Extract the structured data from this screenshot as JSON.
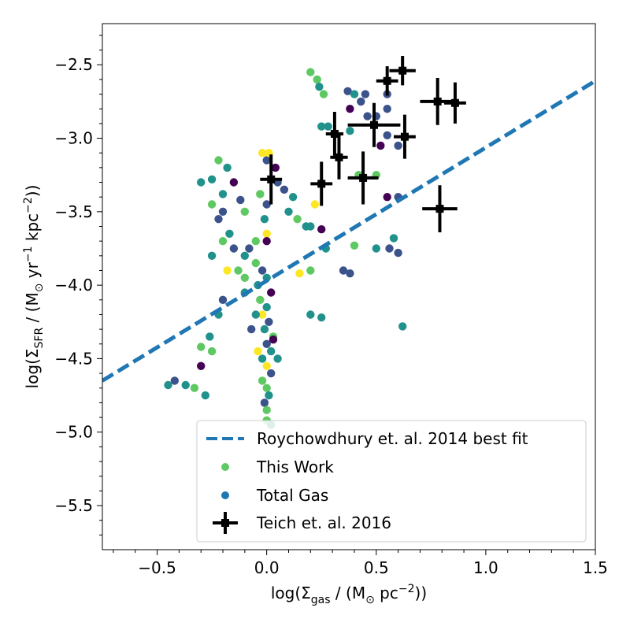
{
  "chart_data": {
    "type": "scatter",
    "xlabel": "log(Σgas / (M⊙ pc−2))",
    "ylabel": "log(ΣSFR / (M⊙ yr−1 kpc−2))",
    "xlim": [
      -0.75,
      1.5
    ],
    "ylim": [
      -5.8,
      -2.22
    ],
    "xticks": [
      -0.5,
      0.0,
      0.5,
      1.0,
      1.5
    ],
    "xtick_labels": [
      "−0.5",
      "0.0",
      "0.5",
      "1.0",
      "1.5"
    ],
    "yticks": [
      -5.5,
      -5.0,
      -4.5,
      -4.0,
      -3.5,
      -3.0,
      -2.5
    ],
    "ytick_labels": [
      "−5.5",
      "−5.0",
      "−4.5",
      "−4.0",
      "−3.5",
      "−3.0",
      "−2.5"
    ],
    "grid": false,
    "legend_position": "lower-right",
    "viridis": [
      "#440154",
      "#3b528b",
      "#21918c",
      "#5ec962",
      "#fde725"
    ],
    "series": [
      {
        "name": "Roychowdhury et. al. 2014 best fit",
        "kind": "line",
        "style": "dashed",
        "color": "#1f77b4",
        "x": [
          -0.75,
          1.5
        ],
        "y": [
          -4.65,
          -2.61
        ]
      },
      {
        "name": "This Work",
        "kind": "scatter",
        "legend_color": "#5ec962",
        "points": [
          [
            0.05,
            -3.3,
            0.15
          ],
          [
            0.08,
            -3.35,
            0.3
          ],
          [
            0.12,
            -3.4,
            0.55
          ],
          [
            0.1,
            -3.5,
            0.4
          ],
          [
            0.14,
            -3.55,
            0.85
          ],
          [
            0.2,
            -3.6,
            0.5
          ],
          [
            0.0,
            -3.15,
            0.2
          ],
          [
            -0.02,
            -3.1,
            0.9
          ],
          [
            0.01,
            -3.1,
            0.95
          ],
          [
            0.04,
            -3.2,
            0.1
          ],
          [
            -0.03,
            -3.38,
            0.7
          ],
          [
            0.0,
            -3.45,
            0.35
          ],
          [
            -0.01,
            -3.55,
            0.55
          ],
          [
            0.0,
            -3.65,
            0.95
          ],
          [
            0.0,
            -3.7,
            0.05
          ],
          [
            -0.05,
            -3.7,
            0.65
          ],
          [
            -0.08,
            -3.75,
            0.3
          ],
          [
            -0.1,
            -3.8,
            0.5
          ],
          [
            -0.05,
            -3.85,
            0.8
          ],
          [
            -0.02,
            -3.9,
            0.2
          ],
          [
            -0.1,
            -3.95,
            0.65
          ],
          [
            -0.04,
            -4.0,
            0.4
          ],
          [
            0.0,
            -3.95,
            0.6
          ],
          [
            0.02,
            -4.05,
            0.1
          ],
          [
            -0.03,
            -4.1,
            0.75
          ],
          [
            0.0,
            -4.15,
            0.45
          ],
          [
            -0.02,
            -4.2,
            0.9
          ],
          [
            0.01,
            -4.25,
            0.3
          ],
          [
            -0.01,
            -4.3,
            0.6
          ],
          [
            0.03,
            -4.35,
            0.85
          ],
          [
            0.0,
            -4.4,
            0.2
          ],
          [
            0.02,
            -4.45,
            0.55
          ],
          [
            -0.02,
            -4.5,
            0.4
          ],
          [
            0.0,
            -4.55,
            0.95
          ],
          [
            0.02,
            -4.6,
            0.3
          ],
          [
            -0.02,
            -4.65,
            0.65
          ],
          [
            0.0,
            -4.7,
            0.8
          ],
          [
            0.01,
            -4.75,
            0.6
          ],
          [
            -0.01,
            -4.8,
            0.25
          ],
          [
            0.0,
            -4.85,
            0.7
          ],
          [
            0.0,
            -4.92,
            0.75
          ],
          [
            0.02,
            -4.95,
            0.6
          ],
          [
            -0.05,
            -4.2,
            0.55
          ],
          [
            -0.07,
            -4.3,
            0.35
          ],
          [
            0.03,
            -4.37,
            0.05
          ],
          [
            -0.04,
            -4.45,
            0.9
          ],
          [
            0.05,
            -4.5,
            0.6
          ],
          [
            -0.1,
            -4.05,
            0.45
          ],
          [
            -0.13,
            -3.9,
            0.75
          ],
          [
            -0.15,
            -3.75,
            0.15
          ],
          [
            -0.17,
            -3.65,
            0.6
          ],
          [
            -0.22,
            -3.55,
            0.3
          ],
          [
            -0.2,
            -3.7,
            0.85
          ],
          [
            -0.25,
            -3.8,
            0.45
          ],
          [
            -0.18,
            -3.9,
            0.95
          ],
          [
            -0.2,
            -4.1,
            0.2
          ],
          [
            -0.22,
            -4.2,
            0.6
          ],
          [
            -0.26,
            -4.35,
            0.5
          ],
          [
            -0.25,
            -4.45,
            0.75
          ],
          [
            -0.3,
            -4.42,
            0.65
          ],
          [
            -0.3,
            -4.55,
            0.1
          ],
          [
            -0.28,
            -4.75,
            0.55
          ],
          [
            -0.33,
            -4.7,
            0.8
          ],
          [
            -0.37,
            -4.68,
            0.4
          ],
          [
            -0.42,
            -4.65,
            0.2
          ],
          [
            -0.45,
            -4.68,
            0.6
          ],
          [
            -0.25,
            -3.28,
            0.5
          ],
          [
            -0.3,
            -3.3,
            0.45
          ],
          [
            -0.22,
            -3.15,
            0.7
          ],
          [
            -0.18,
            -3.2,
            0.55
          ],
          [
            -0.15,
            -3.3,
            0.1
          ],
          [
            -0.2,
            -3.38,
            0.6
          ],
          [
            -0.12,
            -3.42,
            0.35
          ],
          [
            -0.25,
            -3.45,
            0.8
          ],
          [
            -0.2,
            -3.5,
            0.3
          ],
          [
            -0.1,
            -3.5,
            0.65
          ],
          [
            0.22,
            -3.45,
            0.95
          ],
          [
            0.18,
            -3.6,
            0.55
          ],
          [
            0.25,
            -3.62,
            0.05
          ],
          [
            0.2,
            -3.9,
            0.8
          ],
          [
            0.15,
            -3.92,
            0.9
          ],
          [
            0.27,
            -3.75,
            0.45
          ],
          [
            0.35,
            -3.9,
            0.2
          ],
          [
            0.38,
            -3.92,
            0.25
          ],
          [
            0.4,
            -3.73,
            0.75
          ],
          [
            0.5,
            -3.75,
            0.6
          ],
          [
            0.56,
            -3.75,
            0.35
          ],
          [
            0.6,
            -3.78,
            0.3
          ],
          [
            0.58,
            -3.68,
            0.45
          ],
          [
            0.62,
            -4.28,
            0.55
          ],
          [
            0.2,
            -4.2,
            0.5
          ],
          [
            0.25,
            -4.22,
            0.55
          ],
          [
            0.37,
            -2.68,
            0.3
          ],
          [
            0.45,
            -2.7,
            0.2
          ],
          [
            0.5,
            -2.85,
            0.15
          ],
          [
            0.52,
            -3.05,
            0.1
          ],
          [
            0.55,
            -2.98,
            0.25
          ],
          [
            0.6,
            -3.05,
            0.3
          ],
          [
            0.42,
            -3.25,
            0.65
          ],
          [
            0.5,
            -3.25,
            0.85
          ],
          [
            0.55,
            -3.4,
            0.1
          ],
          [
            0.6,
            -3.4,
            0.15
          ],
          [
            0.2,
            -2.55,
            0.8
          ],
          [
            0.23,
            -2.6,
            0.85
          ],
          [
            0.24,
            -2.65,
            0.5
          ],
          [
            0.26,
            -2.7,
            0.75
          ],
          [
            0.25,
            -2.92,
            0.5
          ],
          [
            0.28,
            -2.92,
            0.55
          ],
          [
            0.38,
            -2.95,
            0.55
          ],
          [
            0.4,
            -2.7,
            0.6
          ],
          [
            0.43,
            -2.75,
            0.15
          ],
          [
            0.38,
            -2.8,
            0.05
          ],
          [
            0.46,
            -2.85,
            0.2
          ],
          [
            0.55,
            -2.7,
            0.3
          ],
          [
            0.55,
            -2.8,
            0.35
          ]
        ]
      },
      {
        "name": "Total Gas",
        "kind": "scatter",
        "legend_color": "#1f77b4",
        "points": []
      },
      {
        "name": "Teich et. al. 2016",
        "kind": "errorbar",
        "color": "#000000",
        "points": [
          {
            "x": 0.62,
            "y": -2.54,
            "xerr": 0.06,
            "yerr": 0.1
          },
          {
            "x": 0.55,
            "y": -2.61,
            "xerr": 0.05,
            "yerr": 0.1
          },
          {
            "x": 0.78,
            "y": -2.75,
            "xerr": 0.08,
            "yerr": 0.16
          },
          {
            "x": 0.86,
            "y": -2.76,
            "xerr": 0.05,
            "yerr": 0.14
          },
          {
            "x": 0.49,
            "y": -2.91,
            "xerr": 0.12,
            "yerr": 0.15
          },
          {
            "x": 0.63,
            "y": -2.99,
            "xerr": 0.05,
            "yerr": 0.15
          },
          {
            "x": 0.31,
            "y": -2.97,
            "xerr": 0.04,
            "yerr": 0.15
          },
          {
            "x": 0.33,
            "y": -3.13,
            "xerr": 0.04,
            "yerr": 0.15
          },
          {
            "x": 0.02,
            "y": -3.28,
            "xerr": 0.05,
            "yerr": 0.17
          },
          {
            "x": 0.25,
            "y": -3.31,
            "xerr": 0.05,
            "yerr": 0.15
          },
          {
            "x": 0.44,
            "y": -3.27,
            "xerr": 0.07,
            "yerr": 0.18
          },
          {
            "x": 0.79,
            "y": -3.48,
            "xerr": 0.08,
            "yerr": 0.16
          }
        ]
      }
    ]
  }
}
